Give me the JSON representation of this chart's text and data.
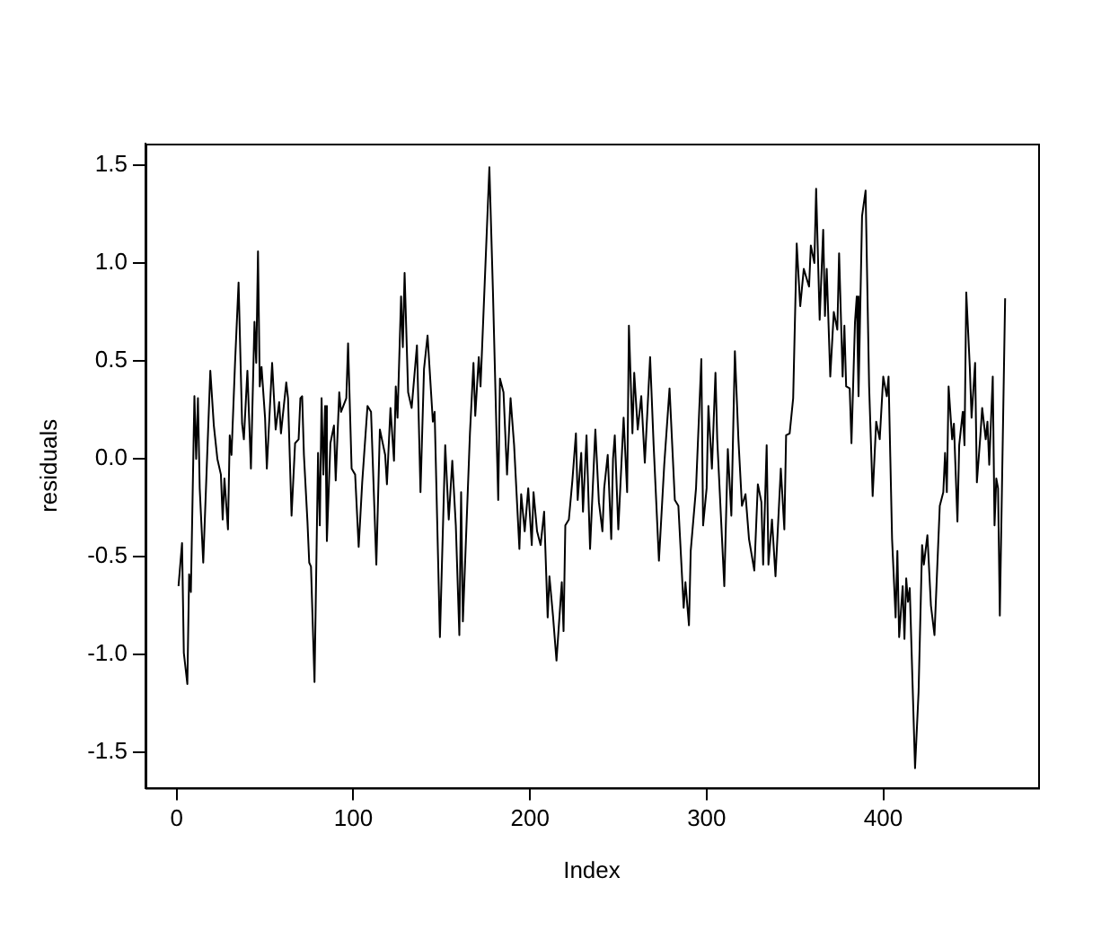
{
  "chart_data": {
    "type": "line",
    "xlabel": "Index",
    "ylabel": "residuals",
    "xlim": [
      -17.7,
      487.7
    ],
    "xticks": [
      0,
      100,
      200,
      300,
      400
    ],
    "ylim": [
      -1.68,
      1.61
    ],
    "yticks": [
      {
        "value": -1.5,
        "label": "-1.5"
      },
      {
        "value": -1,
        "label": "-1.0"
      },
      {
        "value": -0.5,
        "label": "-0.5"
      },
      {
        "value": 0,
        "label": "0.0"
      },
      {
        "value": 0.5,
        "label": "0.5"
      },
      {
        "value": 1,
        "label": "1.0"
      },
      {
        "value": 1.5,
        "label": "1.5"
      }
    ],
    "grid": false,
    "legend": false,
    "series": [
      {
        "color": "#000000",
        "x": [
          1,
          3,
          4,
          6,
          7,
          8,
          10,
          11,
          12,
          13,
          15,
          19,
          21,
          23,
          25,
          26,
          27,
          29,
          30,
          31,
          33,
          35,
          37,
          38,
          40,
          42,
          44,
          45,
          46,
          47,
          48,
          50,
          51,
          54,
          56,
          58,
          59,
          62,
          63,
          65,
          67,
          69,
          70,
          71,
          72,
          74,
          75,
          76,
          78,
          80,
          81,
          82,
          83,
          84,
          85,
          87,
          89,
          90,
          92,
          93,
          96,
          97,
          99,
          101,
          103,
          105,
          108,
          110,
          113,
          115,
          118,
          119,
          121,
          123,
          124,
          125,
          127,
          128,
          129,
          131,
          133,
          136,
          138,
          140,
          142,
          145,
          146,
          149,
          152,
          154,
          156,
          158,
          160,
          161,
          162,
          166,
          168,
          169,
          171,
          172,
          177,
          179,
          182,
          183,
          185,
          187,
          189,
          191,
          194,
          195,
          197,
          199,
          201,
          202,
          204,
          206,
          208,
          210,
          211,
          213,
          215,
          218,
          219,
          220,
          222,
          224,
          226,
          227,
          229,
          230,
          232,
          234,
          237,
          239,
          241,
          242,
          244,
          246,
          247,
          248,
          250,
          253,
          255,
          256,
          258,
          259,
          261,
          263,
          265,
          268,
          270,
          273,
          276,
          279,
          282,
          284,
          287,
          288,
          290,
          291,
          294,
          297,
          298,
          300,
          301,
          303,
          305,
          306,
          310,
          312,
          314,
          316,
          318,
          320,
          322,
          324,
          327,
          329,
          331,
          332,
          334,
          335,
          337,
          339,
          342,
          344,
          345,
          347,
          349,
          351,
          353,
          355,
          358,
          359,
          361,
          362,
          364,
          366,
          367,
          368,
          370,
          372,
          374,
          375,
          377,
          378,
          379,
          381,
          382,
          384,
          385,
          386,
          388,
          390,
          392,
          394,
          396,
          398,
          400,
          402,
          403,
          405,
          407,
          408,
          409,
          411,
          412,
          413,
          414,
          415,
          418,
          420,
          422,
          423,
          425,
          427,
          429,
          432,
          434,
          435,
          436,
          437,
          439,
          440,
          442,
          443,
          445,
          446,
          447,
          449,
          450,
          452,
          453,
          455,
          456,
          458,
          459,
          460,
          462,
          463,
          464,
          465,
          466,
          469
        ],
        "values": [
          -0.65,
          -0.43,
          -0.99,
          -1.15,
          -0.59,
          -0.68,
          0.32,
          0,
          0.31,
          -0.15,
          -0.53,
          0.45,
          0.17,
          0,
          -0.08,
          -0.31,
          -0.1,
          -0.36,
          0.12,
          0.02,
          0.49,
          0.9,
          0.18,
          0.1,
          0.45,
          -0.05,
          0.7,
          0.49,
          1.06,
          0.37,
          0.47,
          0.21,
          -0.05,
          0.49,
          0.15,
          0.29,
          0.13,
          0.39,
          0.31,
          -0.29,
          0.08,
          0.1,
          0.31,
          0.32,
          0.02,
          -0.32,
          -0.53,
          -0.55,
          -1.14,
          0.03,
          -0.34,
          0.31,
          -0.08,
          0.27,
          -0.42,
          0.08,
          0.17,
          -0.11,
          0.34,
          0.24,
          0.31,
          0.59,
          -0.05,
          -0.08,
          -0.45,
          -0.12,
          0.27,
          0.24,
          -0.54,
          0.15,
          0.02,
          -0.13,
          0.26,
          -0.01,
          0.37,
          0.21,
          0.83,
          0.57,
          0.95,
          0.34,
          0.26,
          0.58,
          -0.17,
          0.46,
          0.63,
          0.19,
          0.24,
          -0.91,
          0.07,
          -0.31,
          -0.01,
          -0.34,
          -0.9,
          -0.17,
          -0.83,
          0.13,
          0.49,
          0.22,
          0.52,
          0.37,
          1.49,
          0.86,
          -0.21,
          0.41,
          0.34,
          -0.08,
          0.31,
          0.07,
          -0.46,
          -0.18,
          -0.37,
          -0.15,
          -0.44,
          -0.17,
          -0.37,
          -0.44,
          -0.27,
          -0.81,
          -0.6,
          -0.8,
          -1.03,
          -0.63,
          -0.88,
          -0.34,
          -0.31,
          -0.11,
          0.13,
          -0.21,
          0.03,
          -0.27,
          0.12,
          -0.46,
          0.15,
          -0.22,
          -0.37,
          -0.15,
          0.02,
          -0.41,
          0,
          0.12,
          -0.36,
          0.21,
          -0.17,
          0.68,
          0.13,
          0.44,
          0.15,
          0.32,
          -0.02,
          0.52,
          0.07,
          -0.52,
          -0.03,
          0.36,
          -0.21,
          -0.24,
          -0.76,
          -0.63,
          -0.85,
          -0.47,
          -0.15,
          0.51,
          -0.34,
          -0.15,
          0.27,
          -0.05,
          0.44,
          0.1,
          -0.65,
          0.05,
          -0.29,
          0.55,
          0.1,
          -0.24,
          -0.18,
          -0.41,
          -0.57,
          -0.13,
          -0.22,
          -0.54,
          0.07,
          -0.54,
          -0.31,
          -0.6,
          -0.05,
          -0.36,
          0.12,
          0.13,
          0.31,
          1.1,
          0.78,
          0.97,
          0.88,
          1.09,
          1,
          1.38,
          0.71,
          1.17,
          0.73,
          0.97,
          0.42,
          0.75,
          0.66,
          1.05,
          0.42,
          0.68,
          0.37,
          0.36,
          0.08,
          0.7,
          0.83,
          0.32,
          1.24,
          1.37,
          0.37,
          -0.19,
          0.19,
          0.1,
          0.42,
          0.32,
          0.42,
          -0.41,
          -0.81,
          -0.47,
          -0.91,
          -0.65,
          -0.92,
          -0.61,
          -0.73,
          -0.66,
          -1.58,
          -1.19,
          -0.44,
          -0.54,
          -0.39,
          -0.75,
          -0.9,
          -0.24,
          -0.17,
          0.03,
          -0.17,
          0.37,
          0.1,
          0.18,
          -0.32,
          0.07,
          0.24,
          0.07,
          0.85,
          0.47,
          0.21,
          0.49,
          -0.12,
          0.12,
          0.26,
          0.1,
          0.19,
          -0.03,
          0.42,
          -0.34,
          -0.1,
          -0.15,
          -0.8,
          0.82
        ]
      }
    ]
  }
}
